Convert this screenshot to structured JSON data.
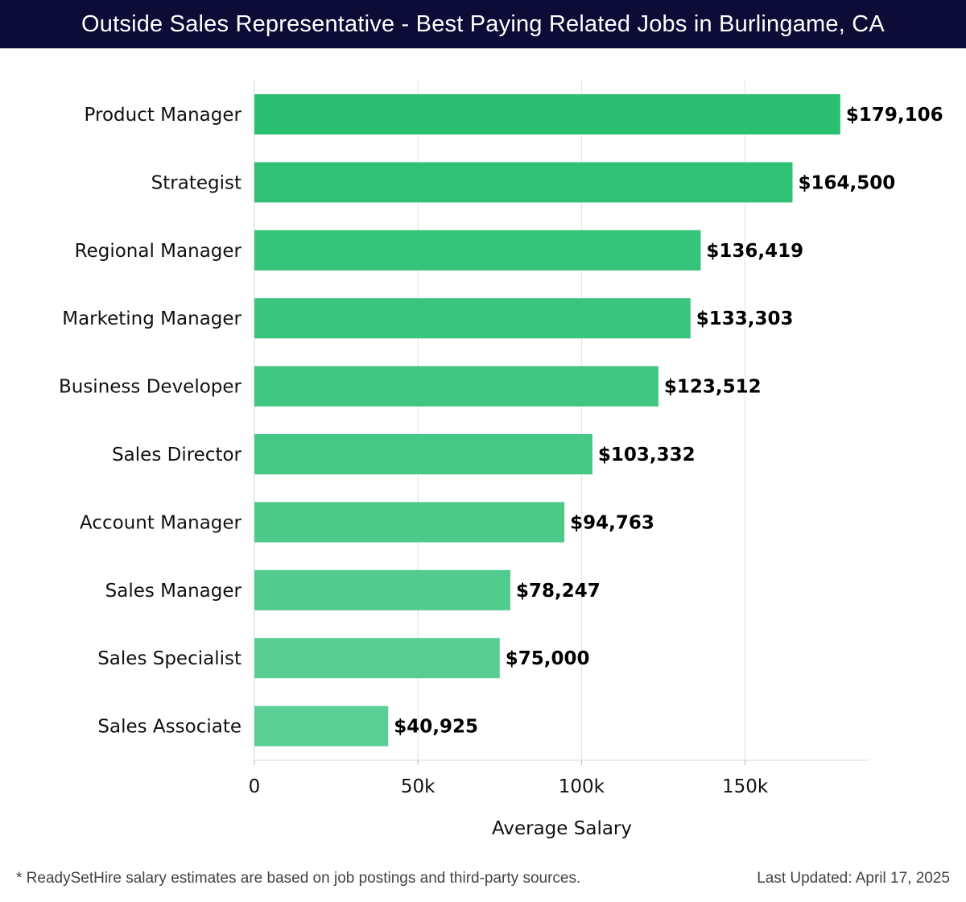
{
  "header": {
    "title": "Outside Sales Representative - Best Paying Related Jobs in Burlingame, CA"
  },
  "footer": {
    "note": "* ReadySetHire salary estimates are based on job postings and third-party sources.",
    "updated": "Last Updated: April 17, 2025"
  },
  "colors": {
    "header_bg": "#0c0c36",
    "bar_top": "#2bbf72",
    "bar_bottom": "#5ccf96",
    "grid": "#e0e0e0"
  },
  "chart_data": {
    "type": "bar",
    "orientation": "horizontal",
    "title": "Outside Sales Representative - Best Paying Related Jobs in Burlingame, CA",
    "xlabel": "Average Salary",
    "ylabel": "",
    "xlim": [
      0,
      188000
    ],
    "grid": true,
    "xticks": [
      {
        "value": 0,
        "label": "0"
      },
      {
        "value": 50000,
        "label": "50k"
      },
      {
        "value": 100000,
        "label": "100k"
      },
      {
        "value": 150000,
        "label": "150k"
      }
    ],
    "categories": [
      "Product Manager",
      "Strategist",
      "Regional Manager",
      "Marketing Manager",
      "Business Developer",
      "Sales Director",
      "Account Manager",
      "Sales Manager",
      "Sales Specialist",
      "Sales Associate"
    ],
    "values": [
      179106,
      164500,
      136419,
      133303,
      123512,
      103332,
      94763,
      78247,
      75000,
      40925
    ],
    "value_labels": [
      "$179,106",
      "$164,500",
      "$136,419",
      "$133,303",
      "$123,512",
      "$103,332",
      "$94,763",
      "$78,247",
      "$75,000",
      "$40,925"
    ]
  }
}
